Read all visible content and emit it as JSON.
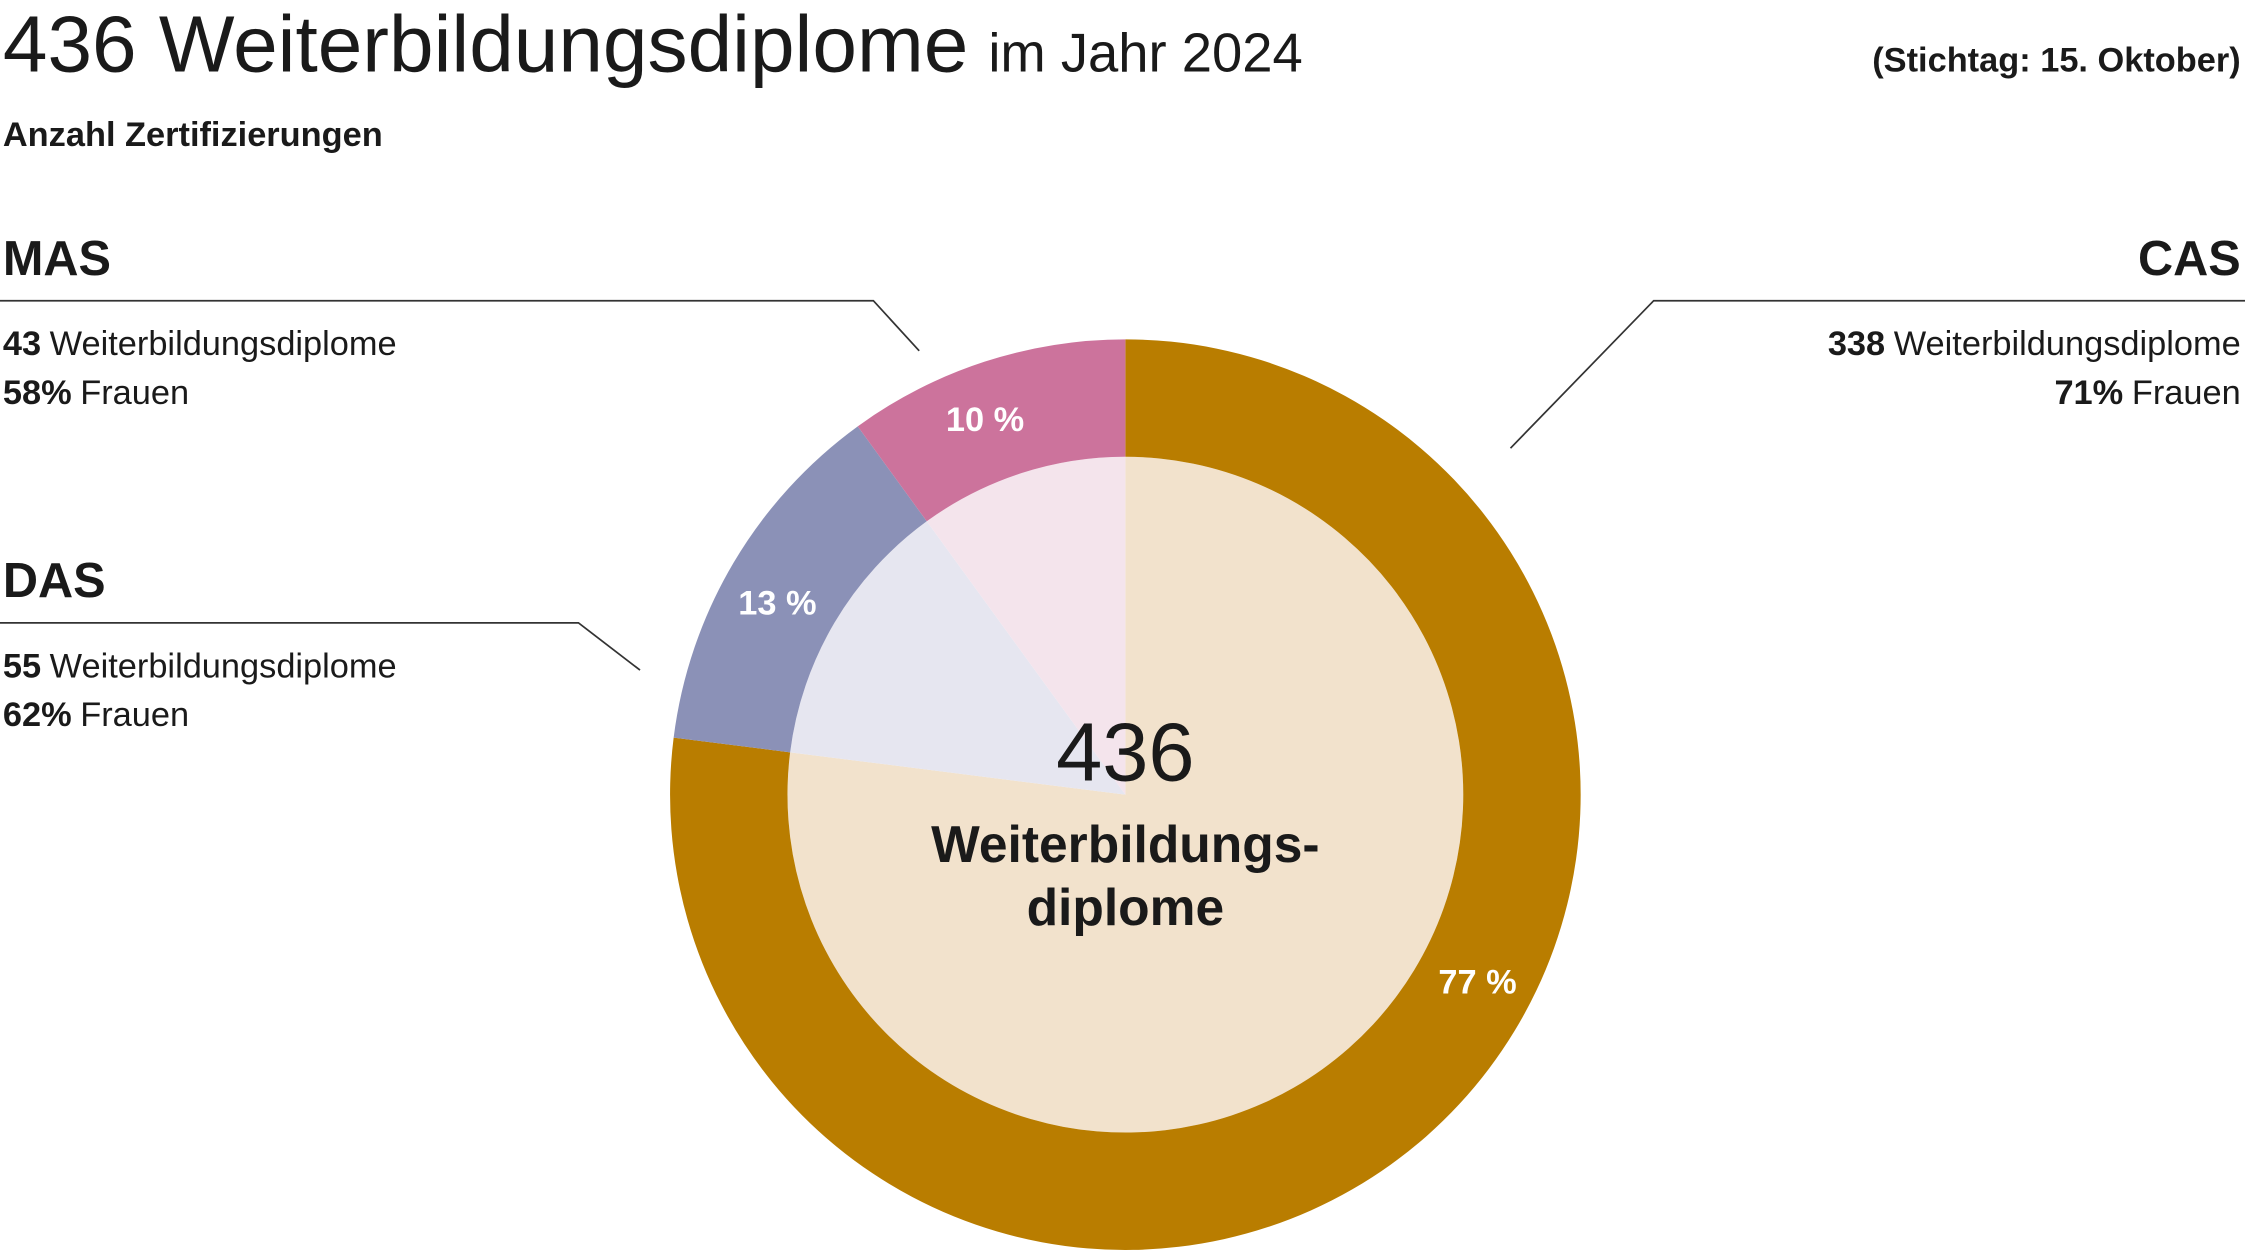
{
  "chart_data": {
    "type": "pie",
    "title": "436 Weiterbildungsdiplome",
    "title_suffix": "im Jahr 2024",
    "note": "(Stichtag: 15. Oktober)",
    "subtitle": "Anzahl Zertifizierungen",
    "categories": [
      "CAS",
      "DAS",
      "MAS"
    ],
    "values": [
      77,
      13,
      10
    ],
    "value_labels": [
      "77 %",
      "13 %",
      "10 %"
    ],
    "colors": [
      "#b97d00",
      "#8b91b7",
      "#cc739c"
    ],
    "inner_colors": [
      "#f2e2cc",
      "#e6e6f0",
      "#f4e4ec"
    ],
    "counts": [
      338,
      55,
      43
    ],
    "count_label": "Weiterbildungsdiplome",
    "women_shares": [
      71,
      62,
      58
    ],
    "women_share_labels": [
      "71%",
      "62%",
      "58%"
    ],
    "women_label": "Frauen",
    "center_value": 436,
    "center_label": [
      "Weiterbildungs-",
      "diplome"
    ]
  }
}
